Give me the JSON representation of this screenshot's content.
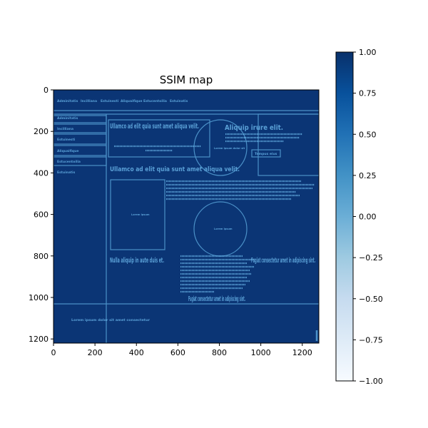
{
  "chart_data": {
    "type": "heatmap",
    "title": "SSIM map",
    "xlabel": "",
    "ylabel": "",
    "xlim": [
      0,
      1280
    ],
    "ylim": [
      1220,
      0
    ],
    "x_ticks": [
      0,
      200,
      400,
      600,
      800,
      1000,
      1200
    ],
    "y_ticks": [
      0,
      200,
      400,
      600,
      800,
      1000,
      1200
    ],
    "colorbar": {
      "range": [
        -1.0,
        1.0
      ],
      "ticks": [
        "1.00",
        "0.75",
        "0.50",
        "0.25",
        "0.00",
        "−0.25",
        "−0.50",
        "−0.75",
        "−1.00"
      ],
      "tick_values": [
        1.0,
        0.75,
        0.5,
        0.25,
        0.0,
        -0.25,
        -0.5,
        -0.75,
        -1.0
      ],
      "colormap": "Blues",
      "color_low": "#f7fbff",
      "color_high": "#08306b"
    },
    "background_value": 0.95,
    "map_text": {
      "nav": [
        "Adminitatis",
        "Incilliana",
        "Estuinesti",
        "Aliquaifique",
        "Estucentoilia",
        "Estuinatis"
      ],
      "sidebar": [
        "Adminitatis",
        "Incilliana",
        "Estuinesti",
        "Aliquaifique",
        "Estucentoilia",
        "Estuinatis"
      ],
      "heading1": "Ullamco ad elit quia sunt amet aliqua velit.",
      "heading2": "Aliquip irure elit.",
      "heading3": "Ullamco ad elit quia sunt amet aliqua velit.",
      "heading4": "Nulla aliquip in aute duis et.",
      "heading5": "Fugiat consectetur amet in adipiscing sint.",
      "heading6": "Fugiat consectetur amet in adipiscing sint.",
      "button": "Tempus eius",
      "small1": "Lorem ipsum dolor sit",
      "small2": "Lorem ipsum",
      "footer": "Lorem ipsum dolor sit amet consectetur"
    }
  }
}
